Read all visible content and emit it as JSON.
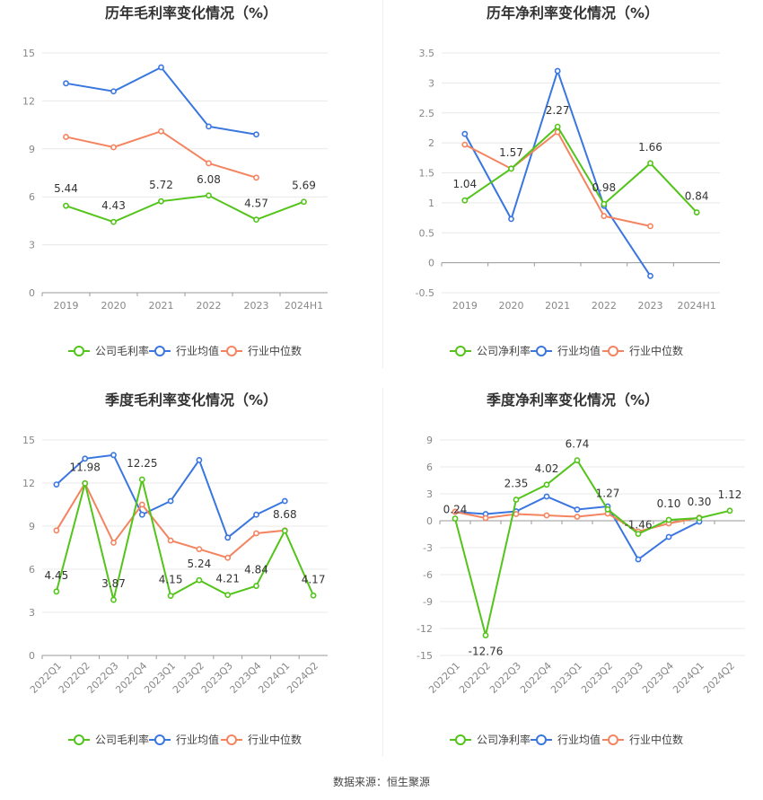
{
  "source_note": "数据来源：恒生聚源",
  "colors": {
    "company": "#52c41a",
    "industry_avg": "#3a76e0",
    "industry_median": "#f4845f",
    "axis_text": "#888888",
    "grid": "#e8e8e8",
    "title": "#333333"
  },
  "chart_data": [
    {
      "id": "annual-gross",
      "type": "line",
      "title": "历年毛利率变化情况（%）",
      "categories": [
        "2019",
        "2020",
        "2021",
        "2022",
        "2023",
        "2024H1"
      ],
      "ylim": [
        0,
        15
      ],
      "yticks": [
        0,
        3,
        6,
        9,
        12,
        15
      ],
      "tick_labels": [
        "0",
        "3",
        "6",
        "9",
        "12",
        "15"
      ],
      "rotate_x": false,
      "series": [
        {
          "name": "公司毛利率",
          "role": "company",
          "values": [
            5.44,
            4.43,
            5.72,
            6.08,
            4.57,
            5.69
          ],
          "labels": [
            "5.44",
            "4.43",
            "5.72",
            "6.08",
            "4.57",
            "5.69"
          ]
        },
        {
          "name": "行业均值",
          "role": "industry_avg",
          "values": [
            13.1,
            12.6,
            14.1,
            10.4,
            9.9,
            null
          ]
        },
        {
          "name": "行业中位数",
          "role": "industry_median",
          "values": [
            9.75,
            9.1,
            10.1,
            8.1,
            7.2,
            null
          ]
        }
      ]
    },
    {
      "id": "annual-net",
      "type": "line",
      "title": "历年净利率变化情况（%）",
      "categories": [
        "2019",
        "2020",
        "2021",
        "2022",
        "2023",
        "2024H1"
      ],
      "ylim": [
        -0.5,
        3.5
      ],
      "yticks": [
        -0.5,
        0,
        0.5,
        1,
        1.5,
        2,
        2.5,
        3,
        3.5
      ],
      "tick_labels": [
        "-0.5",
        "0",
        "0.5",
        "1",
        "1.5",
        "2",
        "2.5",
        "3",
        "3.5"
      ],
      "rotate_x": false,
      "series": [
        {
          "name": "公司净利率",
          "role": "company",
          "values": [
            1.04,
            1.57,
            2.27,
            0.98,
            1.66,
            0.84
          ],
          "labels": [
            "1.04",
            "1.57",
            "2.27",
            "0.98",
            "1.66",
            "0.84"
          ]
        },
        {
          "name": "行业均值",
          "role": "industry_avg",
          "values": [
            2.15,
            0.73,
            3.2,
            0.95,
            -0.22,
            null
          ]
        },
        {
          "name": "行业中位数",
          "role": "industry_median",
          "values": [
            1.97,
            1.57,
            2.18,
            0.78,
            0.61,
            null
          ]
        }
      ]
    },
    {
      "id": "quarterly-gross",
      "type": "line",
      "title": "季度毛利率变化情况（%）",
      "categories": [
        "2022Q1",
        "2022Q2",
        "2022Q3",
        "2022Q4",
        "2023Q1",
        "2023Q2",
        "2023Q3",
        "2023Q4",
        "2024Q1",
        "2024Q2"
      ],
      "ylim": [
        0,
        15
      ],
      "yticks": [
        0,
        3,
        6,
        9,
        12,
        15
      ],
      "tick_labels": [
        "0",
        "3",
        "6",
        "9",
        "12",
        "15"
      ],
      "rotate_x": true,
      "series": [
        {
          "name": "公司毛利率",
          "role": "company",
          "values": [
            4.45,
            11.98,
            3.87,
            12.25,
            4.15,
            5.24,
            4.21,
            4.84,
            8.68,
            4.17
          ],
          "labels": [
            "4.45",
            "11.98",
            "3.87",
            "12.25",
            "4.15",
            "5.24",
            "4.21",
            "4.84",
            "8.68",
            "4.17"
          ]
        },
        {
          "name": "行业均值",
          "role": "industry_avg",
          "values": [
            11.9,
            13.7,
            13.95,
            9.8,
            10.75,
            13.6,
            8.2,
            9.8,
            10.75,
            null
          ]
        },
        {
          "name": "行业中位数",
          "role": "industry_median",
          "values": [
            8.7,
            11.98,
            7.85,
            10.5,
            8.0,
            7.4,
            6.8,
            8.5,
            8.7,
            null
          ]
        }
      ]
    },
    {
      "id": "quarterly-net",
      "type": "line",
      "title": "季度净利率变化情况（%）",
      "categories": [
        "2022Q1",
        "2022Q2",
        "2022Q3",
        "2022Q4",
        "2023Q1",
        "2023Q2",
        "2023Q3",
        "2023Q4",
        "2024Q1",
        "2024Q2"
      ],
      "ylim": [
        -15,
        9
      ],
      "yticks": [
        -15,
        -12,
        -9,
        -6,
        -3,
        0,
        3,
        6,
        9
      ],
      "tick_labels": [
        "-15",
        "-12",
        "-9",
        "-6",
        "-3",
        "0",
        "3",
        "6",
        "9"
      ],
      "rotate_x": true,
      "series": [
        {
          "name": "公司净利率",
          "role": "company",
          "values": [
            0.24,
            -12.76,
            2.35,
            4.02,
            6.74,
            1.27,
            -1.46,
            0.1,
            0.3,
            1.12
          ],
          "labels": [
            "0.24",
            "-12.76",
            "2.35",
            "4.02",
            "6.74",
            "1.27",
            "-1.46",
            "0.10",
            "0.30",
            "1.12"
          ]
        },
        {
          "name": "行业均值",
          "role": "industry_avg",
          "values": [
            1.0,
            0.75,
            1.05,
            2.7,
            1.25,
            1.6,
            -4.3,
            -1.8,
            -0.1,
            null
          ]
        },
        {
          "name": "行业中位数",
          "role": "industry_median",
          "values": [
            1.0,
            0.3,
            0.75,
            0.6,
            0.45,
            0.8,
            -1.2,
            -0.3,
            0.35,
            null
          ]
        }
      ]
    }
  ]
}
